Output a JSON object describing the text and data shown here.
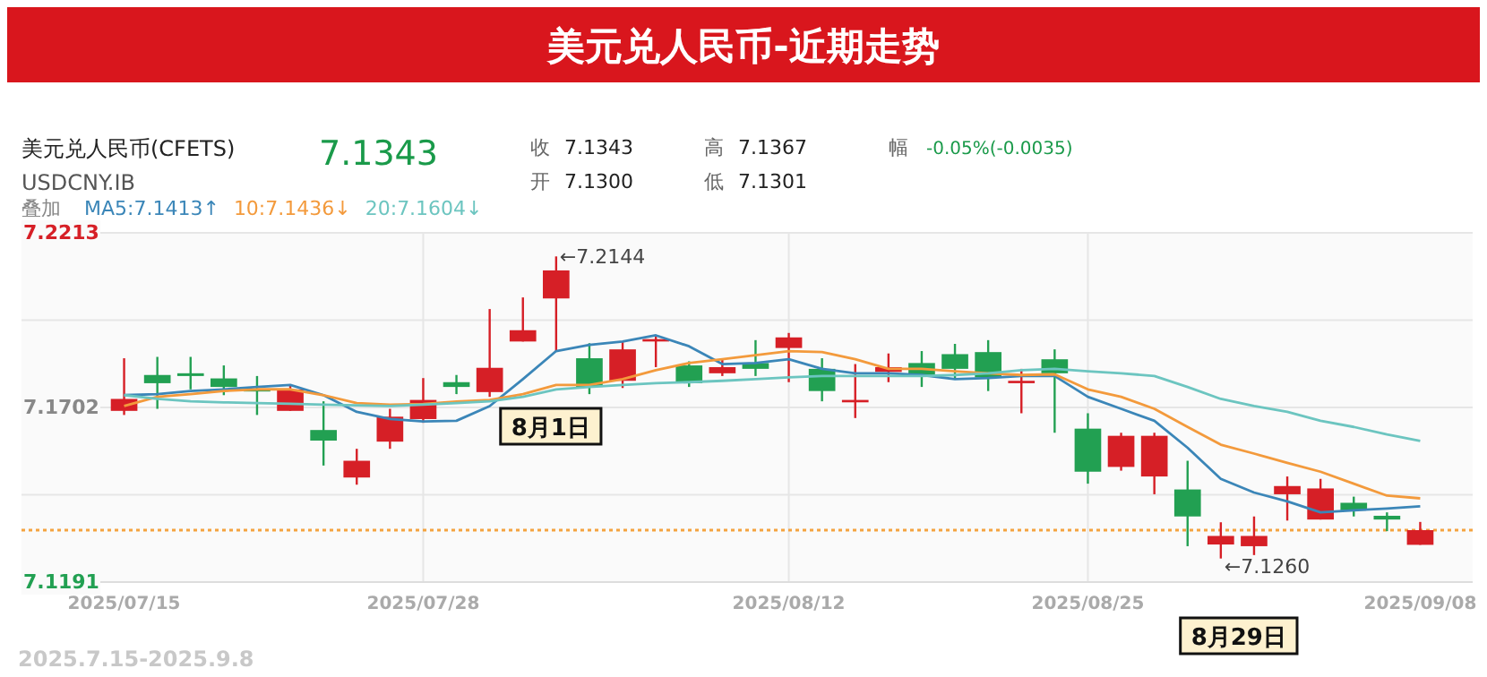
{
  "chart_data": {
    "type": "candlestick",
    "title": "美元兑人民币-近期走势",
    "categories": [
      "2025/07/15",
      null,
      null,
      null,
      null,
      null,
      null,
      null,
      null,
      "2025/07/28",
      null,
      null,
      null,
      null,
      null,
      null,
      null,
      null,
      null,
      null,
      "2025/08/12",
      null,
      null,
      null,
      null,
      null,
      null,
      null,
      null,
      "2025/08/25",
      null,
      null,
      null,
      null,
      null,
      null,
      null,
      null,
      null,
      "2025/09/08"
    ],
    "ohlc": [
      [
        7.1692,
        7.1846,
        7.168,
        7.1727
      ],
      [
        7.1797,
        7.185,
        7.1698,
        7.1773
      ],
      [
        7.1802,
        7.185,
        7.1755,
        7.1794
      ],
      [
        7.1787,
        7.1825,
        7.1738,
        7.1762
      ],
      [
        7.1755,
        7.1794,
        7.168,
        7.1752
      ],
      [
        7.1692,
        7.1768,
        7.1692,
        7.1755
      ],
      [
        7.1636,
        7.172,
        7.1532,
        7.1605
      ],
      [
        7.1497,
        7.1581,
        7.1476,
        7.1546
      ],
      [
        7.1602,
        7.1698,
        7.1581,
        7.1675
      ],
      [
        7.1668,
        7.1788,
        7.1657,
        7.1724
      ],
      [
        7.1776,
        7.1797,
        7.1741,
        7.1762
      ],
      [
        7.1747,
        7.199,
        7.1733,
        7.1818
      ],
      [
        7.1895,
        7.2024,
        7.1895,
        7.1928
      ],
      [
        7.2021,
        7.2144,
        7.1867,
        7.2103
      ],
      [
        7.1846,
        7.189,
        7.1741,
        7.1762
      ],
      [
        7.178,
        7.1895,
        7.1759,
        7.1872
      ],
      [
        7.1895,
        7.1913,
        7.182,
        7.1902
      ],
      [
        7.1825,
        7.1837,
        7.1762,
        7.1773
      ],
      [
        7.1802,
        7.1843,
        7.1794,
        7.182
      ],
      [
        7.1832,
        7.1899,
        7.1794,
        7.1815
      ],
      [
        7.1876,
        7.192,
        7.1776,
        7.1907
      ],
      [
        7.1815,
        7.1846,
        7.172,
        7.175
      ],
      [
        7.1717,
        7.1829,
        7.1671,
        7.1724
      ],
      [
        7.1806,
        7.186,
        7.1776,
        7.182
      ],
      [
        7.1832,
        7.1867,
        7.1762,
        7.1794
      ],
      [
        7.1858,
        7.1888,
        7.1785,
        7.1815
      ],
      [
        7.1864,
        7.1899,
        7.175,
        7.179
      ],
      [
        7.1773,
        7.1815,
        7.1685,
        7.178
      ],
      [
        7.1843,
        7.1872,
        7.1628,
        7.1802
      ],
      [
        7.164,
        7.1685,
        7.1479,
        7.1514
      ],
      [
        7.1528,
        7.1628,
        7.1517,
        7.1619
      ],
      [
        7.15,
        7.1628,
        7.1448,
        7.1619
      ],
      [
        7.1462,
        7.1546,
        7.1296,
        7.1383
      ],
      [
        7.1301,
        7.1366,
        7.126,
        7.1326
      ],
      [
        7.1296,
        7.1383,
        7.127,
        7.1326
      ],
      [
        7.1448,
        7.15,
        7.1371,
        7.1472
      ],
      [
        7.1374,
        7.1493,
        7.1374,
        7.1465
      ],
      [
        7.1423,
        7.1441,
        7.1383,
        7.1401
      ],
      [
        7.1385,
        7.1395,
        7.134,
        7.1374
      ],
      [
        7.13,
        7.1367,
        7.13,
        7.1343
      ]
    ],
    "colors": [
      "#d61f26",
      "#22a052",
      "#22a052",
      "#22a052",
      "#22a052",
      "#d61f26",
      "#22a052",
      "#d61f26",
      "#d61f26",
      "#d61f26",
      "#22a052",
      "#d61f26",
      "#d61f26",
      "#d61f26",
      "#22a052",
      "#d61f26",
      "#d61f26",
      "#22a052",
      "#d61f26",
      "#22a052",
      "#d61f26",
      "#22a052",
      "#d61f26",
      "#d61f26",
      "#22a052",
      "#22a052",
      "#22a052",
      "#d61f26",
      "#22a052",
      "#22a052",
      "#d61f26",
      "#d61f26",
      "#22a052",
      "#d61f26",
      "#d61f26",
      "#d61f26",
      "#d61f26",
      "#22a052",
      "#22a052",
      "#d61f26"
    ],
    "series": [
      {
        "type": "line",
        "name": "MA5:7.1413↑",
        "color": "#3b86b8",
        "values": [
          7.1738,
          7.1741,
          7.175,
          7.1755,
          7.1762,
          7.1768,
          7.1738,
          7.1689,
          7.1668,
          7.1661,
          7.1663,
          7.1706,
          7.1785,
          7.1867,
          7.1885,
          7.1895,
          7.1913,
          7.1881,
          7.1829,
          7.1832,
          7.1843,
          7.1815,
          7.1802,
          7.1802,
          7.1797,
          7.1785,
          7.1788,
          7.1794,
          7.1794,
          7.1733,
          7.1698,
          7.1663,
          7.1584,
          7.1493,
          7.1453,
          7.1427,
          7.1395,
          7.1401,
          7.1406,
          7.1413
        ]
      },
      {
        "type": "line",
        "name": "10:7.1436↓",
        "color": "#f39a3c",
        "values": [
          7.1706,
          7.1733,
          7.1741,
          7.175,
          7.1755,
          7.1755,
          7.1738,
          7.1715,
          7.171,
          7.1712,
          7.1719,
          7.1724,
          7.1741,
          7.1768,
          7.1768,
          7.1785,
          7.1811,
          7.1832,
          7.1843,
          7.1855,
          7.1867,
          7.1864,
          7.1843,
          7.1815,
          7.1815,
          7.1808,
          7.1802,
          7.1797,
          7.1799,
          7.1755,
          7.1733,
          7.1698,
          7.1645,
          7.1593,
          7.1567,
          7.154,
          7.1514,
          7.1479,
          7.1444,
          7.1436
        ]
      },
      {
        "type": "line",
        "name": "20:7.1604↓",
        "color": "#6cc5c0",
        "values": [
          7.1738,
          7.1727,
          7.172,
          7.1717,
          7.1715,
          7.1713,
          7.171,
          7.1708,
          7.1706,
          7.171,
          7.1715,
          7.172,
          7.1733,
          7.1755,
          7.1762,
          7.1768,
          7.1773,
          7.1776,
          7.178,
          7.1785,
          7.179,
          7.1794,
          7.1794,
          7.1794,
          7.1794,
          7.1797,
          7.1802,
          7.1811,
          7.1815,
          7.1808,
          7.1802,
          7.1794,
          7.1762,
          7.1727,
          7.1706,
          7.1689,
          7.1663,
          7.1645,
          7.1623,
          7.1604
        ]
      }
    ],
    "ylim": [
      7.1191,
      7.2213
    ],
    "yticks": [
      7.2213,
      {
        "value": 7.19575,
        "label": null
      },
      7.1702,
      {
        "value": 7.14465,
        "label": null
      },
      7.1191
    ],
    "grid": true,
    "legend": "top left",
    "ref_lines": [
      {
        "axis": "y",
        "value": 7.1343,
        "color": "#f4a340",
        "line_style": "dotted"
      }
    ],
    "annotations": [
      "美元兑人民币(CFETS)",
      "7.1343",
      "USDCNY.IB",
      "收",
      "7.1343",
      "高",
      "7.1367",
      "开",
      "7.1300",
      "低",
      "7.1301",
      "幅",
      "-0.05%(-0.0035)",
      "叠加",
      "8月1日",
      "8月29日",
      "2025.7.15-2025.9.8",
      "←7.2144",
      "←7.1260"
    ]
  }
}
